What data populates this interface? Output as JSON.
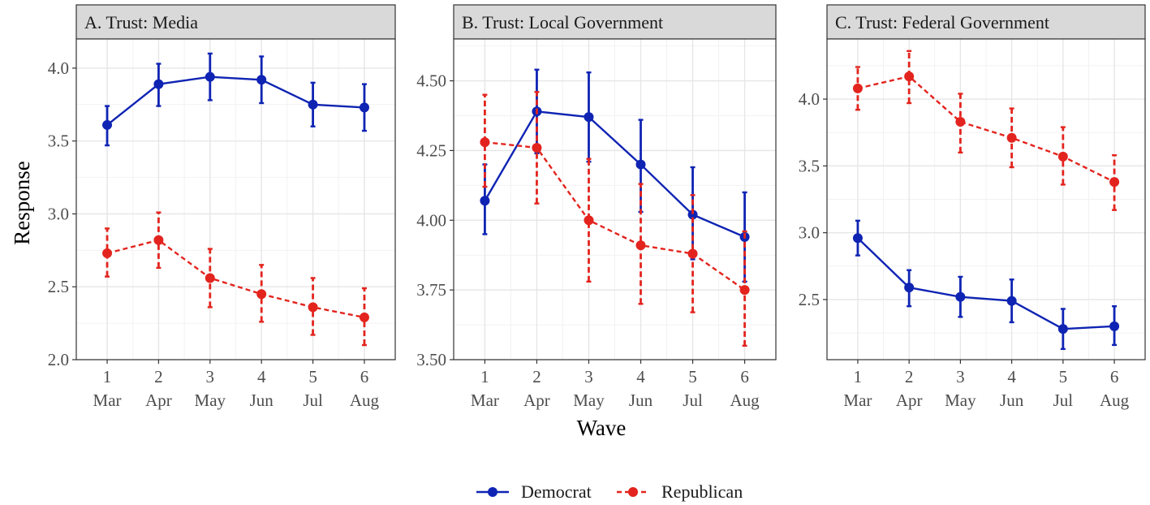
{
  "figure": {
    "ylabel": "Response",
    "xlabel": "Wave"
  },
  "legend": {
    "placement": "bottom",
    "items": [
      {
        "label": "Democrat",
        "color": "#0f24b3",
        "linestyle": "solid"
      },
      {
        "label": "Republican",
        "color": "#e3241e",
        "linestyle": "dashed"
      }
    ]
  },
  "chart_data": [
    {
      "type": "line",
      "title": "A. Trust: Media",
      "x": [
        1,
        2,
        3,
        4,
        5,
        6
      ],
      "x_tick_labels": [
        [
          "1",
          "Mar"
        ],
        [
          "2",
          "Apr"
        ],
        [
          "3",
          "May"
        ],
        [
          "4",
          "Jun"
        ],
        [
          "5",
          "Jul"
        ],
        [
          "6",
          "Aug"
        ]
      ],
      "ylim": [
        2.0,
        4.2
      ],
      "yticks": [
        2.0,
        2.5,
        3.0,
        3.5,
        4.0
      ],
      "ytick_labels": [
        "2.0",
        "2.5",
        "3.0",
        "3.5",
        "4.0"
      ],
      "grid": true,
      "series": [
        {
          "name": "Democrat",
          "color": "#0f24b3",
          "dashed": false,
          "values": [
            3.61,
            3.89,
            3.94,
            3.92,
            3.75,
            3.73
          ],
          "lower": [
            3.47,
            3.74,
            3.78,
            3.76,
            3.6,
            3.57
          ],
          "upper": [
            3.74,
            4.03,
            4.1,
            4.08,
            3.9,
            3.89
          ]
        },
        {
          "name": "Republican",
          "color": "#e3241e",
          "dashed": true,
          "values": [
            2.73,
            2.82,
            2.56,
            2.45,
            2.36,
            2.29
          ],
          "lower": [
            2.57,
            2.63,
            2.36,
            2.26,
            2.17,
            2.1
          ],
          "upper": [
            2.9,
            3.01,
            2.76,
            2.65,
            2.56,
            2.49
          ]
        }
      ]
    },
    {
      "type": "line",
      "title": "B. Trust: Local Government",
      "x": [
        1,
        2,
        3,
        4,
        5,
        6
      ],
      "x_tick_labels": [
        [
          "1",
          "Mar"
        ],
        [
          "2",
          "Apr"
        ],
        [
          "3",
          "May"
        ],
        [
          "4",
          "Jun"
        ],
        [
          "5",
          "Jul"
        ],
        [
          "6",
          "Aug"
        ]
      ],
      "ylim": [
        3.5,
        4.65
      ],
      "yticks": [
        3.5,
        3.75,
        4.0,
        4.25,
        4.5
      ],
      "ytick_labels": [
        "3.50",
        "3.75",
        "4.00",
        "4.25",
        "4.50"
      ],
      "grid": true,
      "series": [
        {
          "name": "Democrat",
          "color": "#0f24b3",
          "dashed": false,
          "values": [
            4.07,
            4.39,
            4.37,
            4.2,
            4.02,
            3.94
          ],
          "lower": [
            3.95,
            4.24,
            4.21,
            4.03,
            3.86,
            3.78
          ],
          "upper": [
            4.2,
            4.54,
            4.53,
            4.36,
            4.19,
            4.1
          ]
        },
        {
          "name": "Republican",
          "color": "#e3241e",
          "dashed": true,
          "values": [
            4.28,
            4.26,
            4.0,
            3.91,
            3.88,
            3.75
          ],
          "lower": [
            4.12,
            4.06,
            3.78,
            3.7,
            3.67,
            3.55
          ],
          "upper": [
            4.45,
            4.46,
            4.22,
            4.13,
            4.09,
            3.96
          ]
        }
      ]
    },
    {
      "type": "line",
      "title": "C. Trust: Federal Government",
      "x": [
        1,
        2,
        3,
        4,
        5,
        6
      ],
      "x_tick_labels": [
        [
          "1",
          "Mar"
        ],
        [
          "2",
          "Apr"
        ],
        [
          "3",
          "May"
        ],
        [
          "4",
          "Jun"
        ],
        [
          "5",
          "Jul"
        ],
        [
          "6",
          "Aug"
        ]
      ],
      "ylim": [
        2.05,
        4.45
      ],
      "yticks": [
        2.5,
        3.0,
        3.5,
        4.0
      ],
      "ytick_labels": [
        "2.5",
        "3.0",
        "3.5",
        "4.0"
      ],
      "grid": true,
      "series": [
        {
          "name": "Democrat",
          "color": "#0f24b3",
          "dashed": false,
          "values": [
            2.96,
            2.59,
            2.52,
            2.49,
            2.28,
            2.3
          ],
          "lower": [
            2.83,
            2.45,
            2.37,
            2.33,
            2.13,
            2.16
          ],
          "upper": [
            3.09,
            2.72,
            2.67,
            2.65,
            2.43,
            2.45
          ]
        },
        {
          "name": "Republican",
          "color": "#e3241e",
          "dashed": true,
          "values": [
            4.08,
            4.17,
            3.83,
            3.71,
            3.57,
            3.38
          ],
          "lower": [
            3.92,
            3.97,
            3.6,
            3.49,
            3.36,
            3.17
          ],
          "upper": [
            4.24,
            4.36,
            4.04,
            3.93,
            3.79,
            3.58
          ]
        }
      ]
    }
  ]
}
